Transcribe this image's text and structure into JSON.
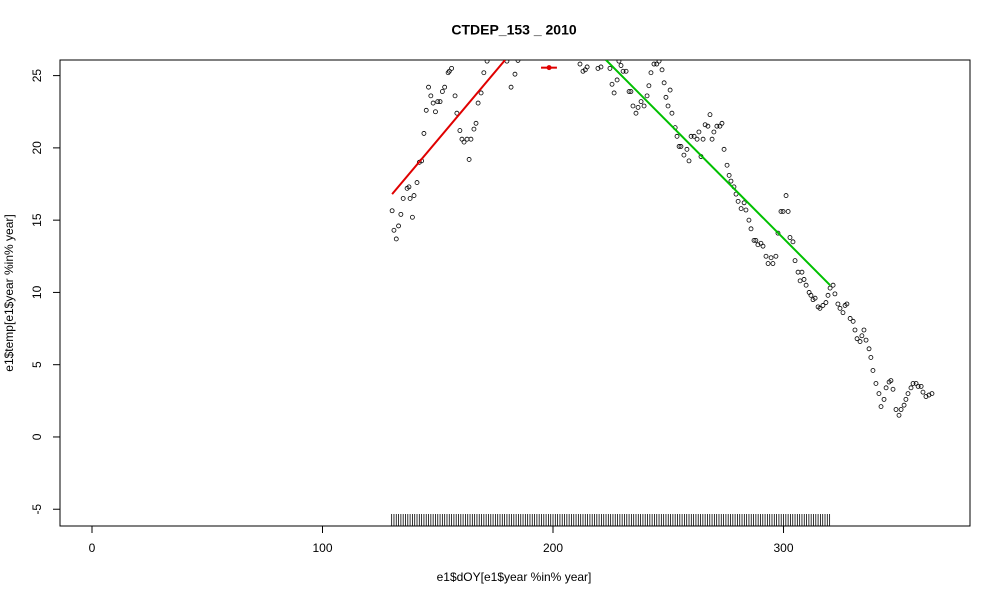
{
  "chart_data": {
    "type": "scatter",
    "title": "CTDEP_153 _ 2010",
    "x_label": "e1$dOY[e1$year %in% year]",
    "y_label": "e1$temp[e1$year %in% year]",
    "xlim": [
      -13.88,
      380.9
    ],
    "ylim": [
      -6.16,
      26.08
    ],
    "xticks": [
      0,
      100,
      200,
      300
    ],
    "yticks": [
      -5,
      0,
      5,
      10,
      15,
      20,
      25
    ],
    "point_color": "#000000",
    "x": [
      130.2,
      131,
      132,
      133,
      134,
      135,
      136.7,
      137.5,
      138,
      139,
      139.7,
      141,
      142,
      143,
      144,
      145,
      146,
      147,
      148,
      149,
      150,
      151,
      152,
      153,
      154.5,
      155,
      156,
      157.5,
      158.3,
      159.6,
      160.5,
      161.4,
      162.7,
      163.6,
      164.4,
      165.7,
      166.6,
      167.5,
      168.8,
      170,
      171.4,
      180,
      181.8,
      183.5,
      184.8,
      211.7,
      213,
      214,
      214.8,
      219.5,
      220.8,
      224.7,
      225.6,
      226.5,
      227.8,
      228.6,
      229.5,
      230.4,
      231.7,
      233,
      233.8,
      234.7,
      236,
      236.9,
      238.2,
      239.5,
      240.8,
      241.6,
      242.5,
      243.8,
      245,
      246,
      247.3,
      248.2,
      249,
      249.9,
      250.8,
      251.6,
      253,
      253.8,
      254.7,
      255.5,
      256.8,
      258.1,
      259,
      259.9,
      261.2,
      262.5,
      263.3,
      264.2,
      265.1,
      266,
      267.2,
      268.1,
      269,
      269.8,
      271.1,
      272.4,
      273.3,
      274.2,
      275.5,
      276.4,
      277.2,
      278.5,
      279.4,
      280.3,
      281.6,
      282.9,
      283.7,
      285,
      285.9,
      287.2,
      288,
      288.9,
      290.2,
      291.1,
      292.4,
      293.3,
      294.6,
      295.4,
      296.7,
      297.6,
      298.9,
      299.8,
      301.1,
      302,
      302.8,
      304.1,
      305,
      306.3,
      307.2,
      308,
      308.9,
      309.8,
      311.1,
      311.9,
      312.8,
      313.7,
      315,
      315.8,
      317.1,
      318.4,
      319.3,
      320.2,
      321.5,
      322.3,
      323.6,
      324.5,
      325.8,
      326.7,
      327.5,
      328.9,
      330.2,
      331,
      331.9,
      333.2,
      334,
      334.9,
      335.8,
      337.1,
      337.9,
      338.8,
      340.1,
      341.4,
      342.3,
      343.6,
      344.5,
      345.8,
      346.6,
      347.5,
      348.8,
      350.1,
      351,
      352.3,
      353.1,
      354,
      355.3,
      356.2,
      357.5,
      358.4,
      359.7,
      360.5,
      361.8,
      363.1,
      364.4
    ],
    "y": [
      15.65,
      14.3,
      13.7,
      14.6,
      15.4,
      16.5,
      17.2,
      17.3,
      16.5,
      15.2,
      16.7,
      17.6,
      19.0,
      19.1,
      21.0,
      22.6,
      24.2,
      23.6,
      23.1,
      22.5,
      23.2,
      23.2,
      23.9,
      24.2,
      25.2,
      25.3,
      25.5,
      23.6,
      22.4,
      21.2,
      20.6,
      20.4,
      20.6,
      19.2,
      20.6,
      21.3,
      21.7,
      23.1,
      23.8,
      25.2,
      26.0,
      26.0,
      24.2,
      25.1,
      26.05,
      25.8,
      25.3,
      25.4,
      25.6,
      25.5,
      25.6,
      25.5,
      24.4,
      23.8,
      24.7,
      26.0,
      25.7,
      25.3,
      25.3,
      23.9,
      23.9,
      22.9,
      22.4,
      22.8,
      23.2,
      22.9,
      23.6,
      24.3,
      25.2,
      25.8,
      25.8,
      26.0,
      25.4,
      24.5,
      23.5,
      22.9,
      24.0,
      22.4,
      21.4,
      20.8,
      20.1,
      20.1,
      19.5,
      19.9,
      19.1,
      20.8,
      20.8,
      20.6,
      21.1,
      19.4,
      20.6,
      21.6,
      21.5,
      22.3,
      20.6,
      21.1,
      21.5,
      21.5,
      21.7,
      19.9,
      18.8,
      18.1,
      17.7,
      17.3,
      16.8,
      16.3,
      15.8,
      16.2,
      15.7,
      15.0,
      14.4,
      13.6,
      13.6,
      13.3,
      13.4,
      13.2,
      12.5,
      12.0,
      12.4,
      12.0,
      12.5,
      14.1,
      15.6,
      15.6,
      16.7,
      15.6,
      13.8,
      13.5,
      12.2,
      11.4,
      10.8,
      11.4,
      10.9,
      10.5,
      10.0,
      9.8,
      9.5,
      9.6,
      9.0,
      8.9,
      9.1,
      9.3,
      9.8,
      10.3,
      10.5,
      9.9,
      9.2,
      8.9,
      8.6,
      9.1,
      9.2,
      8.2,
      8.0,
      7.4,
      6.8,
      6.6,
      7.0,
      7.4,
      6.7,
      6.1,
      5.5,
      4.6,
      3.7,
      3.0,
      2.1,
      2.6,
      3.4,
      3.8,
      3.9,
      3.3,
      1.9,
      1.5,
      1.9,
      2.2,
      2.6,
      3.0,
      3.4,
      3.7,
      3.7,
      3.5,
      3.5,
      3.1,
      2.8,
      2.9,
      3.0
    ],
    "fits": [
      {
        "color": "#e00000",
        "x": [
          130.2,
          179.2
        ],
        "y": [
          16.8,
          26.08
        ]
      },
      {
        "color": "#00c000",
        "x": [
          223,
          320.2
        ],
        "y": [
          26.08,
          10.5
        ]
      }
    ],
    "marker": {
      "color": "#e00000",
      "x": 198.3,
      "y": 25.55,
      "xmin": 194.8,
      "xmax": 201.7
    },
    "rug": [
      130,
      131,
      132,
      133,
      134,
      135,
      136,
      137,
      138,
      139,
      140,
      141,
      142,
      143,
      144,
      145,
      146,
      147,
      148,
      149,
      150,
      151,
      152,
      153,
      154,
      155,
      156,
      157,
      158,
      159,
      160,
      161,
      162,
      163,
      164,
      165,
      166,
      167,
      168,
      169,
      170,
      171,
      172,
      173,
      174,
      175,
      176,
      177,
      178,
      179,
      180,
      181,
      182,
      183,
      184,
      185,
      186,
      187,
      188,
      189,
      190,
      191,
      192,
      193,
      194,
      195,
      196,
      197,
      198,
      199,
      200,
      201,
      202,
      203,
      204,
      205,
      206,
      207,
      208,
      209,
      210,
      211,
      212,
      213,
      214,
      215,
      216,
      217,
      218,
      219,
      220,
      221,
      222,
      223,
      224,
      225,
      226,
      227,
      228,
      229,
      230,
      231,
      232,
      233,
      234,
      235,
      236,
      237,
      238,
      239,
      240,
      241,
      242,
      243,
      244,
      245,
      246,
      247,
      248,
      249,
      250,
      251,
      252,
      253,
      254,
      255,
      256,
      257,
      258,
      259,
      260,
      261,
      262,
      263,
      264,
      265,
      266,
      267,
      268,
      269,
      270,
      271,
      272,
      273,
      274,
      275,
      276,
      277,
      278,
      279,
      280,
      281,
      282,
      283,
      284,
      285,
      286,
      287,
      288,
      289,
      290,
      291,
      292,
      293,
      294,
      295,
      296,
      297,
      298,
      299,
      300,
      301,
      302,
      303,
      304,
      305,
      306,
      307,
      308,
      309,
      310,
      311,
      312,
      313,
      314,
      315,
      316,
      317,
      318,
      319,
      320
    ]
  }
}
